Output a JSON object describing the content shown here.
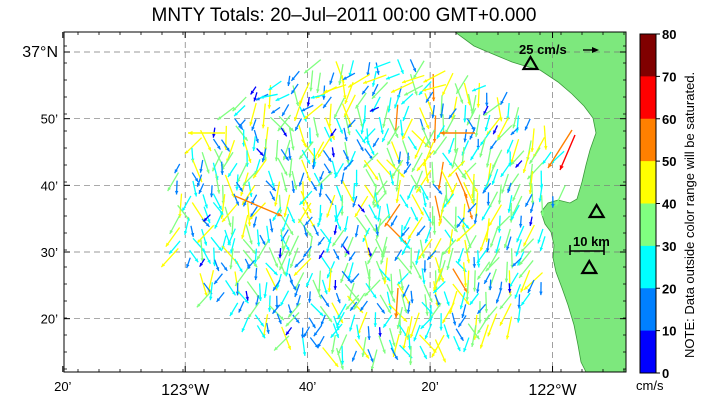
{
  "title": "MNTY Totals: 20–Jul–2011 00:00 GMT+0.000",
  "map": {
    "lon_range": [
      -123.33,
      -121.8
    ],
    "lat_range": [
      36.2,
      37.05
    ],
    "y_ticks": [
      {
        "lat": 37.0,
        "label": "37°N",
        "major": true
      },
      {
        "lat": 36.8333,
        "label": "50’",
        "major": false
      },
      {
        "lat": 36.6667,
        "label": "40’",
        "major": false
      },
      {
        "lat": 36.5,
        "label": "30’",
        "major": false
      },
      {
        "lat": 36.3333,
        "label": "20’",
        "major": false
      }
    ],
    "x_ticks": [
      {
        "lon": -123.3333,
        "label": "20’",
        "major": false
      },
      {
        "lon": -123.0,
        "label": "123°W",
        "major": true
      },
      {
        "lon": -122.6667,
        "label": "40’",
        "major": false
      },
      {
        "lon": -122.3333,
        "label": "20’",
        "major": false
      },
      {
        "lon": -122.0,
        "label": "122°W",
        "major": true
      }
    ],
    "land_color": "#7de87d",
    "grid": true,
    "stations": [
      {
        "lon": -122.06,
        "lat": 36.97
      },
      {
        "lon": -121.88,
        "lat": 36.6
      },
      {
        "lon": -121.9,
        "lat": 36.46
      }
    ],
    "scale_arrow_label": "25 cm/s",
    "scale_bar_label": "10 km"
  },
  "colorbar": {
    "ticks": [
      "80",
      "70",
      "60",
      "50",
      "40",
      "30",
      "20",
      "10",
      "0"
    ],
    "colors": [
      "#800000",
      "#ff0000",
      "#ff8000",
      "#ffff00",
      "#80ff80",
      "#00ffff",
      "#0080ff",
      "#0000ff"
    ],
    "units": "cm/s",
    "note": "NOTE: Data outside color range will be saturated."
  }
}
